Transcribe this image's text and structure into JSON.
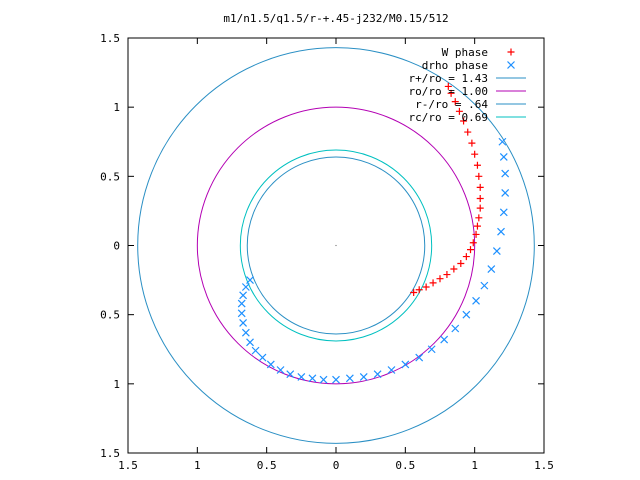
{
  "chart_data": {
    "type": "scatter",
    "title": "m1/n1.5/q1.5/r-+.45-j232/M0.15/512",
    "xlabel": "",
    "ylabel": "",
    "xlim": [
      -1.5,
      1.5
    ],
    "ylim": [
      -1.5,
      1.5
    ],
    "x_ticks": [
      -1.5,
      -1,
      -0.5,
      0,
      0.5,
      1,
      1.5
    ],
    "x_tick_labels": [
      "1.5",
      "1",
      "0.5",
      "0",
      "0.5",
      "1",
      "1.5"
    ],
    "y_ticks": [
      1.5,
      1,
      0.5,
      0,
      -0.5,
      -1,
      -1.5
    ],
    "y_tick_labels": [
      "1.5",
      "1",
      "0.5",
      "0",
      "0.5",
      "1",
      "1.5"
    ],
    "grid": false,
    "legend_position": "top-right",
    "series": [
      {
        "name": "W phase",
        "kind": "points",
        "marker": "+",
        "color": "#ff0000",
        "x": [
          0.56,
          0.6,
          0.65,
          0.7,
          0.75,
          0.8,
          0.85,
          0.9,
          0.94,
          0.97,
          0.99,
          1.01,
          1.02,
          1.03,
          1.04,
          1.04,
          1.04,
          1.03,
          1.02,
          1.0,
          0.98,
          0.95,
          0.92,
          0.89,
          0.86,
          0.83,
          0.81
        ],
        "y": [
          -0.34,
          -0.32,
          -0.3,
          -0.27,
          -0.24,
          -0.21,
          -0.17,
          -0.13,
          -0.08,
          -0.03,
          0.02,
          0.08,
          0.14,
          0.2,
          0.27,
          0.34,
          0.42,
          0.5,
          0.58,
          0.66,
          0.74,
          0.82,
          0.9,
          0.97,
          1.04,
          1.1,
          1.15
        ]
      },
      {
        "name": "drho phase",
        "kind": "points",
        "marker": "x",
        "color": "#1e90ff",
        "x": [
          -0.62,
          -0.65,
          -0.67,
          -0.68,
          -0.68,
          -0.67,
          -0.65,
          -0.62,
          -0.58,
          -0.53,
          -0.47,
          -0.4,
          -0.33,
          -0.25,
          -0.17,
          -0.09,
          0.0,
          0.1,
          0.2,
          0.3,
          0.4,
          0.5,
          0.6,
          0.69,
          0.78,
          0.86,
          0.94,
          1.01,
          1.07,
          1.12,
          1.16,
          1.19,
          1.21,
          1.22,
          1.22,
          1.21,
          1.2
        ],
        "y": [
          -0.25,
          -0.3,
          -0.36,
          -0.42,
          -0.49,
          -0.56,
          -0.63,
          -0.7,
          -0.76,
          -0.81,
          -0.86,
          -0.9,
          -0.93,
          -0.95,
          -0.96,
          -0.97,
          -0.97,
          -0.96,
          -0.95,
          -0.93,
          -0.9,
          -0.86,
          -0.81,
          -0.75,
          -0.68,
          -0.6,
          -0.5,
          -0.4,
          -0.29,
          -0.17,
          -0.04,
          0.1,
          0.24,
          0.38,
          0.52,
          0.64,
          0.75
        ]
      },
      {
        "name": "r+/ro = 1.43",
        "kind": "circle",
        "radius": 1.43,
        "color": "#2a8fc4"
      },
      {
        "name": "ro/ro = 1.00",
        "kind": "circle",
        "radius": 1.0,
        "color": "#b300b3"
      },
      {
        "name": "r-/ro = .64",
        "kind": "circle",
        "radius": 0.64,
        "color": "#2a8fc4"
      },
      {
        "name": "rc/ro = 0.69",
        "kind": "circle",
        "radius": 0.69,
        "color": "#00c0c0"
      }
    ],
    "legend": [
      {
        "label": "W phase"
      },
      {
        "label": "drho phase"
      },
      {
        "label": "r+/ro = 1.43"
      },
      {
        "label": "ro/ro = 1.00"
      },
      {
        "label": "r-/ro = .64"
      },
      {
        "label": "rc/ro = 0.69"
      }
    ]
  }
}
